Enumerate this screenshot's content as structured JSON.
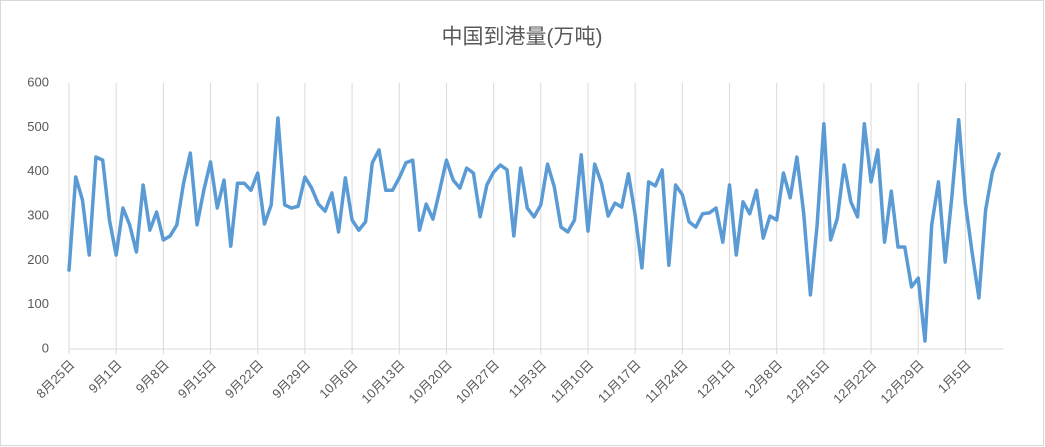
{
  "chart_data": {
    "type": "line",
    "title": "中国到港量(万吨)",
    "categories": [
      "8月25日",
      null,
      null,
      null,
      null,
      null,
      null,
      "9月1日",
      null,
      null,
      null,
      null,
      null,
      null,
      "9月8日",
      null,
      null,
      null,
      null,
      null,
      null,
      "9月15日",
      null,
      null,
      null,
      null,
      null,
      null,
      "9月22日",
      null,
      null,
      null,
      null,
      null,
      null,
      "9月29日",
      null,
      null,
      null,
      null,
      null,
      null,
      "10月6日",
      null,
      null,
      null,
      null,
      null,
      null,
      "10月13日",
      null,
      null,
      null,
      null,
      null,
      null,
      "10月20日",
      null,
      null,
      null,
      null,
      null,
      null,
      "10月27日",
      null,
      null,
      null,
      null,
      null,
      null,
      "11月3日",
      null,
      null,
      null,
      null,
      null,
      null,
      "11月10日",
      null,
      null,
      null,
      null,
      null,
      null,
      "11月17日",
      null,
      null,
      null,
      null,
      null,
      null,
      "11月24日",
      null,
      null,
      null,
      null,
      null,
      null,
      "12月1日",
      null,
      null,
      null,
      null,
      null,
      null,
      "12月8日",
      null,
      null,
      null,
      null,
      null,
      null,
      "12月15日",
      null,
      null,
      null,
      null,
      null,
      null,
      "12月22日",
      null,
      null,
      null,
      null,
      null,
      null,
      "12月29日",
      null,
      null,
      null,
      null,
      null,
      null,
      "1月5日",
      null,
      null,
      null,
      null,
      null
    ],
    "values": [
      178,
      388,
      336,
      212,
      433,
      426,
      291,
      212,
      318,
      280,
      219,
      370,
      268,
      309,
      246,
      255,
      280,
      374,
      442,
      280,
      358,
      422,
      318,
      381,
      232,
      374,
      374,
      358,
      397,
      282,
      325,
      521,
      325,
      318,
      322,
      388,
      363,
      327,
      311,
      352,
      264,
      386,
      291,
      268,
      287,
      420,
      449,
      358,
      358,
      386,
      420,
      426,
      268,
      327,
      293,
      358,
      426,
      381,
      363,
      408,
      397,
      298,
      370,
      399,
      415,
      404,
      255,
      408,
      318,
      298,
      325,
      417,
      366,
      275,
      264,
      291,
      438,
      266,
      417,
      374,
      300,
      329,
      320,
      395,
      302,
      183,
      377,
      368,
      404,
      189,
      370,
      348,
      287,
      275,
      305,
      307,
      318,
      241,
      370,
      212,
      332,
      305,
      358,
      250,
      300,
      291,
      397,
      341,
      433,
      307,
      122,
      280,
      508,
      246,
      295,
      415,
      332,
      298,
      508,
      377,
      449,
      241,
      356,
      230,
      230,
      140,
      160,
      18,
      280,
      377,
      196,
      345,
      517,
      329,
      217,
      115,
      314,
      399,
      440
    ],
    "color": "#5b9bd5",
    "ylim": [
      0,
      600
    ],
    "yticks": [
      0,
      100,
      200,
      300,
      400,
      500,
      600
    ]
  }
}
